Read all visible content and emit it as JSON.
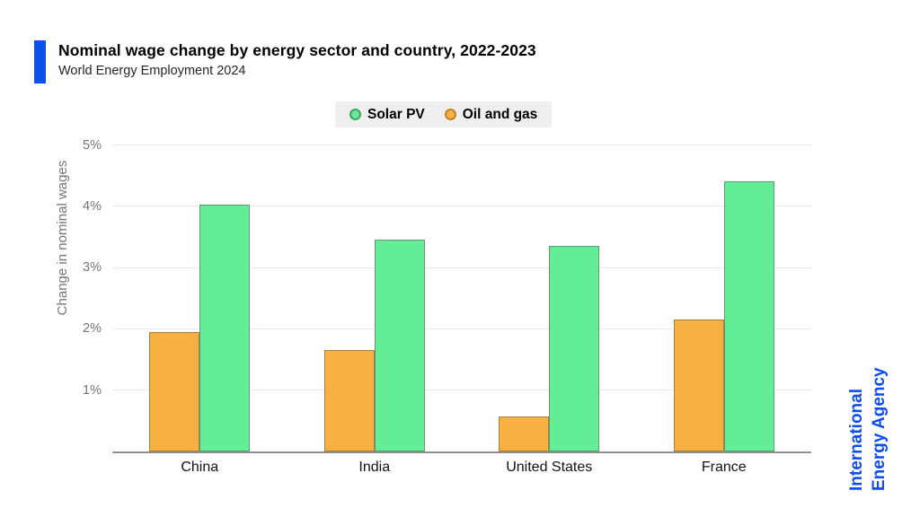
{
  "header": {
    "title": "Nominal wage change by energy sector and country, 2022-2023",
    "subtitle": "World Energy Employment 2024",
    "accent_color": "#0c50ee"
  },
  "legend": {
    "items": [
      {
        "label": "Solar PV",
        "dot_color": "#6fe49c",
        "dot_ring": "#3fa467"
      },
      {
        "label": "Oil and gas",
        "dot_color": "#f8b149",
        "dot_ring": "#c08222"
      }
    ]
  },
  "chart_data": {
    "type": "bar",
    "title": "Nominal wage change by energy sector and country, 2022-2023",
    "subtitle": "World Energy Employment 2024",
    "categories": [
      "China",
      "India",
      "United States",
      "France"
    ],
    "series": [
      {
        "name": "Oil and gas",
        "color": "#f9b042",
        "border_color": "#a1813a",
        "values": [
          1.95,
          1.65,
          0.57,
          2.15
        ]
      },
      {
        "name": "Solar PV",
        "color": "#63ed96",
        "border_color": "#5f9a74",
        "values": [
          4.03,
          3.45,
          3.35,
          4.4
        ]
      }
    ],
    "group_order_note": "within each category group: Oil and gas bar on left, Solar PV bar on right",
    "xlabel": "",
    "ylabel": "Change in nominal wages",
    "yticks": [
      1,
      2,
      3,
      4,
      5
    ],
    "ytick_labels": [
      "1%",
      "2%",
      "3%",
      "4%",
      "5%"
    ],
    "ylim": [
      0,
      5.2
    ],
    "grid": true,
    "gridline_color": "#e8e8e8",
    "axis_line_color": "#8f8f8f",
    "legend_position": "top-center"
  },
  "watermark": {
    "line1": "International",
    "line2": "Energy Agency",
    "color": "#0d4cf0"
  }
}
